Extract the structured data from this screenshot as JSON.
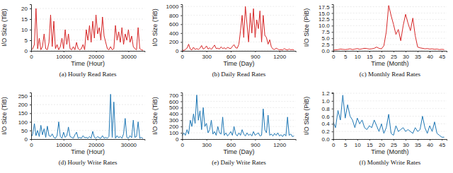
{
  "chart_data": [
    {
      "type": "line",
      "title": "(a) Hourly Read Rates",
      "xlabel": "Time (Hour)",
      "ylabel": "I/O Size (TiB)",
      "color": "#d62728",
      "grid": true,
      "xlim": [
        0,
        35000
      ],
      "xticks": [
        0,
        10000,
        20000,
        30000
      ],
      "ylim": [
        0,
        22
      ],
      "yticks": [
        0,
        5,
        10,
        15,
        20
      ],
      "x": [
        0,
        500,
        1000,
        1500,
        2000,
        2500,
        3000,
        3500,
        4000,
        4500,
        5000,
        5500,
        6000,
        6500,
        7000,
        7500,
        8000,
        8500,
        9000,
        9500,
        10000,
        10500,
        11000,
        11500,
        12000,
        12500,
        13000,
        13500,
        14000,
        14500,
        15000,
        15500,
        16000,
        16500,
        17000,
        17500,
        18000,
        18500,
        19000,
        19500,
        20000,
        20500,
        21000,
        21500,
        22000,
        22500,
        23000,
        23500,
        24000,
        24500,
        25000,
        25500,
        26000,
        26500,
        27000,
        27500,
        28000,
        28500,
        29000,
        29500,
        30000,
        30500,
        31000,
        31500,
        32000,
        32500,
        33000,
        33500,
        34000,
        34500
      ],
      "values": [
        0.5,
        1,
        3,
        20,
        1,
        6,
        0.5,
        2,
        8,
        1,
        0.5,
        4,
        17,
        2,
        14,
        1,
        3,
        0.5,
        2,
        6,
        1,
        10,
        3,
        8,
        1,
        0.5,
        2,
        0.5,
        4,
        1,
        0.5,
        1,
        3,
        0.5,
        10,
        5,
        12,
        4,
        14,
        6,
        17,
        8,
        11,
        5,
        16,
        7,
        4,
        1,
        0.5,
        2,
        0.5,
        1,
        12,
        5,
        9,
        4,
        11,
        3,
        8,
        5,
        10,
        4,
        7,
        2,
        1,
        0.5,
        11,
        1,
        0.5,
        0.3
      ]
    },
    {
      "type": "line",
      "title": "(b) Daily Read Rates",
      "xlabel": "Time (Day)",
      "ylabel": "I/O Size (TiB)",
      "color": "#d62728",
      "grid": true,
      "xlim": [
        0,
        1400
      ],
      "xticks": [
        0,
        300,
        600,
        900,
        1200
      ],
      "ylim": [
        0,
        1050
      ],
      "yticks": [
        0,
        200,
        400,
        600,
        800,
        1000
      ],
      "x": [
        0,
        20,
        40,
        60,
        80,
        100,
        120,
        140,
        160,
        180,
        200,
        220,
        240,
        260,
        280,
        300,
        320,
        340,
        360,
        380,
        400,
        420,
        440,
        460,
        480,
        500,
        520,
        540,
        560,
        580,
        600,
        620,
        640,
        660,
        680,
        700,
        720,
        740,
        760,
        780,
        800,
        820,
        840,
        860,
        880,
        900,
        920,
        940,
        960,
        980,
        1000,
        1020,
        1040,
        1060,
        1080,
        1100,
        1120,
        1140,
        1160,
        1180,
        1200,
        1220,
        1240,
        1260,
        1280,
        1300,
        1320,
        1340,
        1360,
        1380
      ],
      "values": [
        20,
        10,
        30,
        60,
        150,
        40,
        20,
        80,
        30,
        50,
        30,
        60,
        120,
        40,
        60,
        110,
        40,
        70,
        30,
        80,
        130,
        50,
        60,
        40,
        90,
        50,
        70,
        40,
        80,
        60,
        50,
        100,
        140,
        70,
        60,
        150,
        450,
        800,
        300,
        1000,
        600,
        200,
        850,
        400,
        950,
        300,
        700,
        500,
        900,
        200,
        800,
        350,
        300,
        150,
        250,
        90,
        40,
        30,
        60,
        40,
        20,
        30,
        20,
        50,
        30,
        20,
        40,
        25,
        30,
        20
      ]
    },
    {
      "type": "line",
      "title": "(c) Monthly Read Rates",
      "xlabel": "Time (Month)",
      "ylabel": "I/O Size (PiB)",
      "color": "#d62728",
      "grid": true,
      "xlim": [
        0,
        47
      ],
      "xticks": [
        0,
        5,
        10,
        15,
        20,
        25,
        30,
        35,
        40,
        45
      ],
      "ylim": [
        0,
        18.5
      ],
      "yticks": [
        {
          "value": 0,
          "label": "0.0"
        },
        2.5,
        {
          "value": 5,
          "label": "5.0"
        },
        7.5,
        {
          "value": 10,
          "label": "10.0"
        },
        12.5,
        {
          "value": 15,
          "label": "15.0"
        },
        17.5
      ],
      "x": [
        0,
        1,
        2,
        3,
        4,
        5,
        6,
        7,
        8,
        9,
        10,
        11,
        12,
        13,
        14,
        15,
        16,
        17,
        18,
        19,
        20,
        21,
        22,
        23,
        24,
        25,
        26,
        27,
        28,
        29,
        30,
        31,
        32,
        33,
        34,
        35,
        36,
        37,
        38,
        39,
        40,
        41,
        42,
        43,
        44,
        45,
        46
      ],
      "values": [
        0.3,
        0.4,
        0.5,
        0.7,
        0.6,
        0.5,
        0.6,
        0.8,
        0.5,
        0.7,
        0.9,
        0.6,
        0.8,
        1.0,
        0.9,
        0.7,
        0.8,
        1.0,
        1.5,
        1.0,
        0.8,
        2.0,
        7.5,
        18.0,
        14.0,
        10.5,
        6.5,
        8.5,
        4.0,
        10.0,
        14.5,
        11.0,
        8.0,
        13.0,
        6.0,
        1.5,
        1.2,
        1.0,
        0.8,
        0.9,
        0.7,
        0.8,
        0.6,
        0.7,
        0.5,
        0.6,
        0.5
      ]
    },
    {
      "type": "line",
      "title": "(d) Hourly Write Rates",
      "xlabel": "Time (Hour)",
      "ylabel": "I/O Size (TiB)",
      "color": "#1f77b4",
      "grid": true,
      "xlim": [
        0,
        35000
      ],
      "xticks": [
        0,
        10000,
        20000,
        30000
      ],
      "ylim": [
        0,
        270
      ],
      "yticks": [
        0,
        50,
        100,
        150,
        200,
        250
      ],
      "x": [
        0,
        500,
        1000,
        1500,
        2000,
        2500,
        3000,
        3500,
        4000,
        4500,
        5000,
        5500,
        6000,
        6500,
        7000,
        7500,
        8000,
        8500,
        9000,
        9500,
        10000,
        10500,
        11000,
        11500,
        12000,
        12500,
        13000,
        13500,
        14000,
        14500,
        15000,
        15500,
        16000,
        16500,
        17000,
        17500,
        18000,
        18500,
        19000,
        19500,
        20000,
        20500,
        21000,
        21500,
        22000,
        22500,
        23000,
        23500,
        24000,
        24500,
        25000,
        25500,
        26000,
        26500,
        27000,
        27500,
        28000,
        28500,
        29000,
        29500,
        30000,
        30500,
        31000,
        31500,
        32000,
        32500,
        33000,
        33500,
        34000,
        34500
      ],
      "values": [
        10,
        30,
        90,
        20,
        50,
        15,
        80,
        25,
        60,
        10,
        75,
        20,
        15,
        30,
        10,
        5,
        20,
        100,
        15,
        5,
        40,
        10,
        20,
        70,
        15,
        10,
        5,
        25,
        40,
        5,
        10,
        5,
        20,
        8,
        10,
        5,
        15,
        5,
        45,
        10,
        5,
        15,
        8,
        5,
        20,
        5,
        10,
        5,
        15,
        260,
        10,
        215,
        5,
        20,
        8,
        15,
        5,
        30,
        120,
        10,
        5,
        20,
        8,
        110,
        10,
        15,
        100,
        5,
        10,
        3
      ]
    },
    {
      "type": "line",
      "title": "(e) Daily Write Rates",
      "xlabel": "Time (Day)",
      "ylabel": "I/O Size (TiB)",
      "color": "#1f77b4",
      "grid": true,
      "xlim": [
        0,
        1400
      ],
      "xticks": [
        0,
        300,
        600,
        900,
        1200
      ],
      "ylim": [
        0,
        740
      ],
      "yticks": [
        0,
        100,
        200,
        300,
        400,
        500,
        600,
        700
      ],
      "x": [
        0,
        20,
        40,
        60,
        80,
        100,
        120,
        140,
        160,
        180,
        200,
        220,
        240,
        260,
        280,
        300,
        320,
        340,
        360,
        380,
        400,
        420,
        440,
        460,
        480,
        500,
        520,
        540,
        560,
        580,
        600,
        620,
        640,
        660,
        680,
        700,
        720,
        740,
        760,
        780,
        800,
        820,
        840,
        860,
        880,
        900,
        920,
        940,
        960,
        980,
        1000,
        1020,
        1040,
        1060,
        1080,
        1100,
        1120,
        1140,
        1160,
        1180,
        1200,
        1220,
        1240,
        1260,
        1280,
        1300,
        1320,
        1340,
        1360,
        1380
      ],
      "values": [
        50,
        100,
        60,
        150,
        80,
        300,
        200,
        400,
        250,
        700,
        300,
        450,
        150,
        500,
        200,
        250,
        100,
        150,
        300,
        80,
        120,
        60,
        200,
        100,
        80,
        350,
        60,
        100,
        50,
        80,
        120,
        60,
        200,
        80,
        50,
        100,
        60,
        150,
        80,
        50,
        100,
        60,
        80,
        50,
        120,
        60,
        80,
        100,
        50,
        60,
        480,
        150,
        100,
        380,
        60,
        80,
        50,
        90,
        60,
        100,
        50,
        70,
        40,
        80,
        50,
        350,
        60,
        80,
        40,
        50
      ]
    },
    {
      "type": "line",
      "title": "(f) Monthly Write Rates",
      "xlabel": "Time (Month)",
      "ylabel": "I/O Size (PiB)",
      "color": "#1f77b4",
      "grid": true,
      "xlim": [
        0,
        47
      ],
      "xticks": [
        0,
        5,
        10,
        15,
        20,
        25,
        30,
        35,
        40,
        45
      ],
      "ylim": [
        0,
        1.22
      ],
      "yticks": [
        {
          "value": 0,
          "label": "0.0"
        },
        0.2,
        0.4,
        0.6,
        0.8,
        {
          "value": 1,
          "label": "1.0"
        },
        1.2
      ],
      "x": [
        0,
        1,
        2,
        3,
        4,
        5,
        6,
        7,
        8,
        9,
        10,
        11,
        12,
        13,
        14,
        15,
        16,
        17,
        18,
        19,
        20,
        21,
        22,
        23,
        24,
        25,
        26,
        27,
        28,
        29,
        30,
        31,
        32,
        33,
        34,
        35,
        36,
        37,
        38,
        39,
        40,
        41,
        42,
        43,
        44,
        45,
        46
      ],
      "values": [
        0.45,
        0.3,
        0.75,
        0.5,
        1.15,
        0.55,
        0.9,
        0.6,
        0.5,
        0.3,
        0.55,
        0.4,
        0.5,
        0.3,
        0.25,
        0.35,
        0.3,
        0.5,
        0.35,
        0.2,
        0.4,
        0.15,
        0.3,
        0.65,
        0.15,
        0.1,
        0.35,
        0.2,
        0.25,
        0.3,
        0.2,
        0.25,
        0.2,
        0.15,
        0.3,
        0.2,
        0.25,
        0.6,
        0.3,
        0.15,
        0.35,
        0.2,
        0.45,
        0.15,
        0.1,
        0.05,
        0.05
      ]
    }
  ]
}
